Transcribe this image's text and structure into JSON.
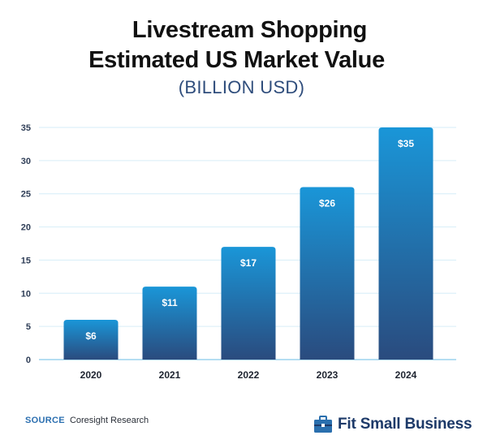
{
  "title_line1": "Livestream Shopping",
  "title_line2": "Estimated US Market Value",
  "subtitle": "(BILLION USD)",
  "chart_data": {
    "type": "bar",
    "categories": [
      "2020",
      "2021",
      "2022",
      "2023",
      "2024"
    ],
    "values": [
      6,
      11,
      17,
      26,
      35
    ],
    "data_labels": [
      "$6",
      "$11",
      "$17",
      "$26",
      "$35"
    ],
    "yticks": [
      0,
      5,
      10,
      15,
      20,
      25,
      30,
      35
    ],
    "ylim": [
      0,
      35
    ],
    "grid": true,
    "legend": "none"
  },
  "colors": {
    "bar_top": "#1a96d8",
    "bar_bottom": "#2a4b7e",
    "grid": "#d6eef8",
    "axis": "#9bd3ee"
  },
  "footer": {
    "source_key": "SOURCE",
    "source_text": "Coresight Research",
    "logo_text": "Fit Small Business",
    "logo_icon": "briefcase-icon"
  }
}
